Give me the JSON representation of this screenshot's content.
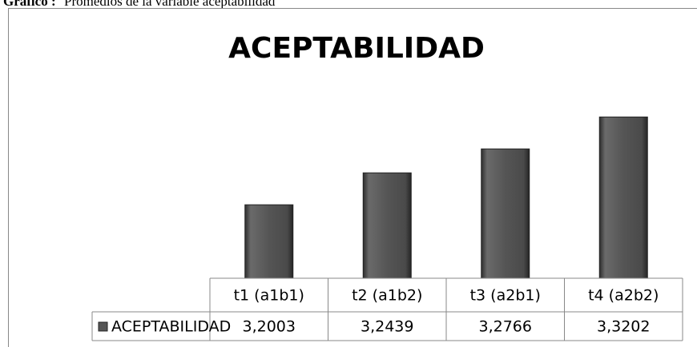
{
  "caption_label": "Gráfico :",
  "caption": "Promedios de la variable aceptabilidad",
  "chart_data": {
    "type": "bar",
    "title": "ACEPTABILIDAD",
    "categories": [
      "t1 (a1b1)",
      "t2 (a1b2)",
      "t3 (a2b1)",
      "t4 (a2b2)"
    ],
    "series": [
      {
        "name": "ACEPTABILIDAD",
        "color": "#555555",
        "values": [
          3.2003,
          3.2439,
          3.2766,
          3.3202
        ],
        "value_labels": [
          "3,2003",
          "3,2439",
          "3,2766",
          "3,3202"
        ]
      }
    ],
    "ylim": [
      3.1,
      3.35
    ],
    "grid": false,
    "legend": "bottom"
  }
}
